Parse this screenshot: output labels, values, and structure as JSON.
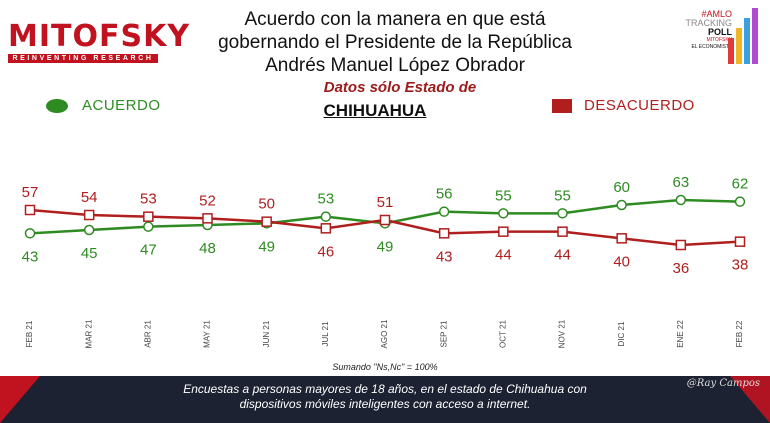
{
  "brand": {
    "name": "MITOFSKY",
    "tagline": "REINVENTING RESEARCH"
  },
  "header": {
    "title_lines": [
      "Acuerdo con la manera en que está",
      "gobernando el Presidente de la República",
      "Andrés Manuel López Obrador"
    ],
    "subtitle": "Datos sólo Estado de",
    "state": "CHIHUAHUA"
  },
  "tracker": {
    "line1": "#AMLO",
    "line2": "TRACKING",
    "line3": "POLL",
    "line4": "MITOFSKY",
    "line5": "EL ECONOMISTA"
  },
  "legend": {
    "agree": "ACUERDO",
    "disagree": "DESACUERDO"
  },
  "colors": {
    "agree": "#2e8b22",
    "disagree": "#b01e1e",
    "brand": "#c1121f",
    "footer": "#1d2233"
  },
  "chart_data": {
    "type": "line",
    "categories": [
      "FEB 21",
      "MAR 21",
      "ABR 21",
      "MAY 21",
      "JUN 21",
      "JUL 21",
      "AGO 21",
      "SEP 21",
      "OCT 21",
      "NOV 21",
      "DIC 21",
      "ENE 22",
      "FEB 22"
    ],
    "series": [
      {
        "name": "ACUERDO",
        "values": [
          43,
          45,
          47,
          48,
          49,
          53,
          49,
          56,
          55,
          55,
          60,
          63,
          62
        ]
      },
      {
        "name": "DESACUERDO",
        "values": [
          57,
          54,
          53,
          52,
          50,
          46,
          51,
          43,
          44,
          44,
          40,
          36,
          38
        ]
      }
    ],
    "grid": false
  },
  "note": "Sumando \"Ns,Nc\" = 100%",
  "footer": {
    "line1": "Encuestas a personas mayores de 18 años, en el estado de Chihuahua con",
    "line2": "dispositivos móviles inteligentes con acceso a internet.",
    "signature": "@Ray Campos"
  }
}
